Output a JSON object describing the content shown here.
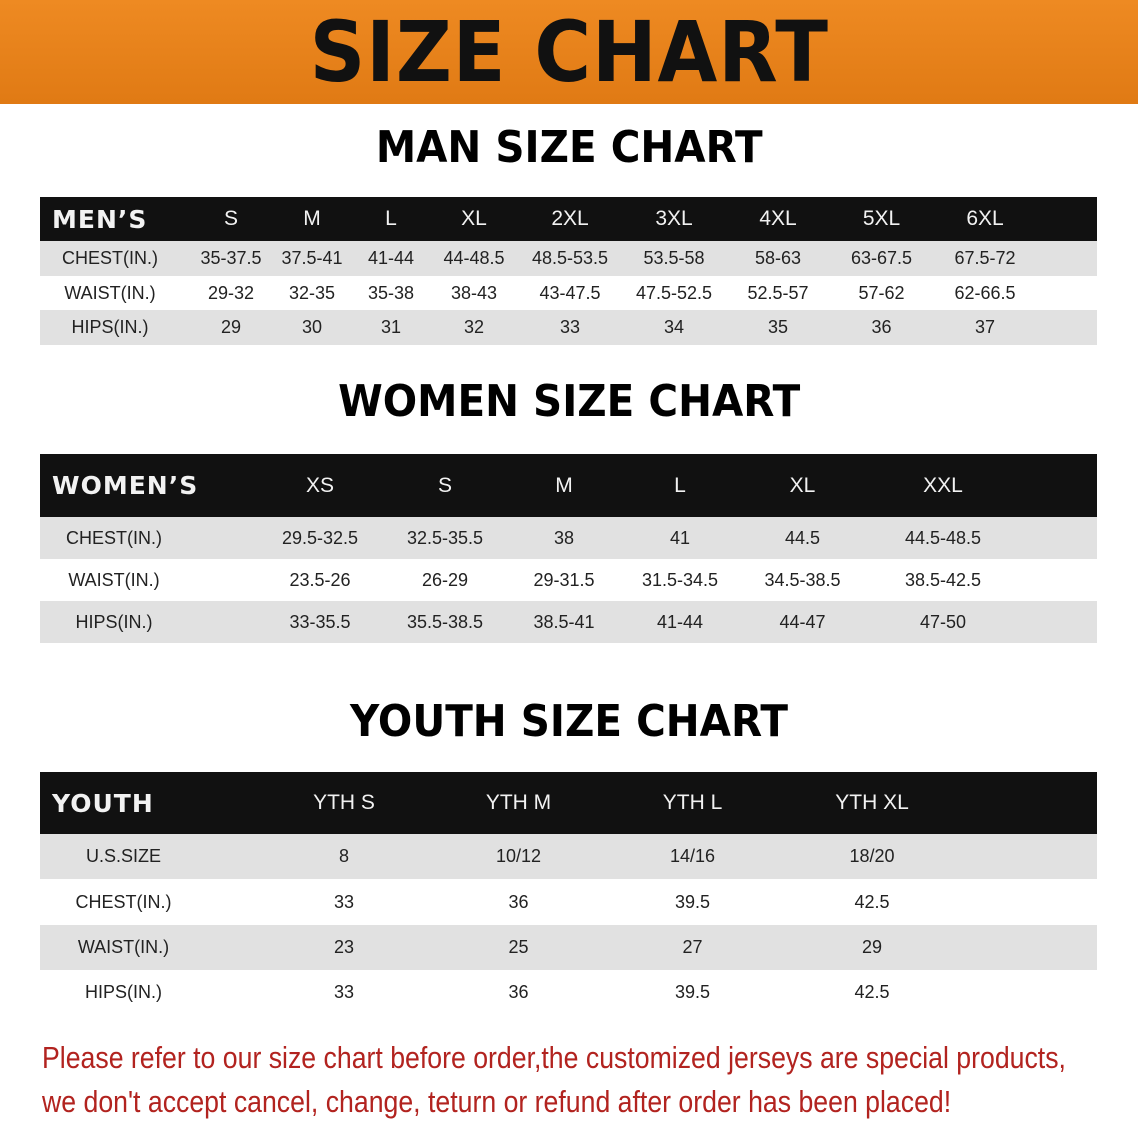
{
  "banner": "SIZE CHART",
  "men": {
    "title": "MAN SIZE CHART",
    "header": [
      "MEN’S",
      "S",
      "M",
      "L",
      "XL",
      "2XL",
      "3XL",
      "4XL",
      "5XL",
      "6XL"
    ],
    "rows": [
      [
        "CHEST(IN.)",
        "35-37.5",
        "37.5-41",
        "41-44",
        "44-48.5",
        "48.5-53.5",
        "53.5-58",
        "58-63",
        "63-67.5",
        "67.5-72"
      ],
      [
        "WAIST(IN.)",
        "29-32",
        "32-35",
        "35-38",
        "38-43",
        "43-47.5",
        "47.5-52.5",
        "52.5-57",
        "57-62",
        "62-66.5"
      ],
      [
        "HIPS(IN.)",
        "29",
        "30",
        "31",
        "32",
        "33",
        "34",
        "35",
        "36",
        "37"
      ]
    ]
  },
  "women": {
    "title": "WOMEN SIZE CHART",
    "header": [
      "WOMEN’S",
      "XS",
      "S",
      "M",
      "L",
      "XL",
      "XXL"
    ],
    "rows": [
      [
        "CHEST(IN.)",
        "29.5-32.5",
        "32.5-35.5",
        "38",
        "41",
        "44.5",
        "44.5-48.5"
      ],
      [
        "WAIST(IN.)",
        "23.5-26",
        "26-29",
        "29-31.5",
        "31.5-34.5",
        "34.5-38.5",
        "38.5-42.5"
      ],
      [
        "HIPS(IN.)",
        "33-35.5",
        "35.5-38.5",
        "38.5-41",
        "41-44",
        "44-47",
        "47-50"
      ]
    ]
  },
  "youth": {
    "title": "YOUTH SIZE CHART",
    "header": [
      "YOUTH",
      "YTH S",
      "YTH M",
      "YTH L",
      "YTH XL"
    ],
    "rows": [
      [
        "U.S.SIZE",
        "8",
        "10/12",
        "14/16",
        "18/20"
      ],
      [
        "CHEST(IN.)",
        "33",
        "36",
        "39.5",
        "42.5"
      ],
      [
        "WAIST(IN.)",
        "23",
        "25",
        "27",
        "29"
      ],
      [
        "HIPS(IN.)",
        "33",
        "36",
        "39.5",
        "42.5"
      ]
    ]
  },
  "footer": {
    "line1": "Please refer to our size chart before order,the customized jerseys are special products,",
    "line2": "we don't accept cancel, change, teturn or refund after order has been placed!"
  },
  "colors": {
    "banner": "#e8801a",
    "header_row": "#111111",
    "stripe": "#e1e1e1",
    "notice": "#b2231f"
  }
}
